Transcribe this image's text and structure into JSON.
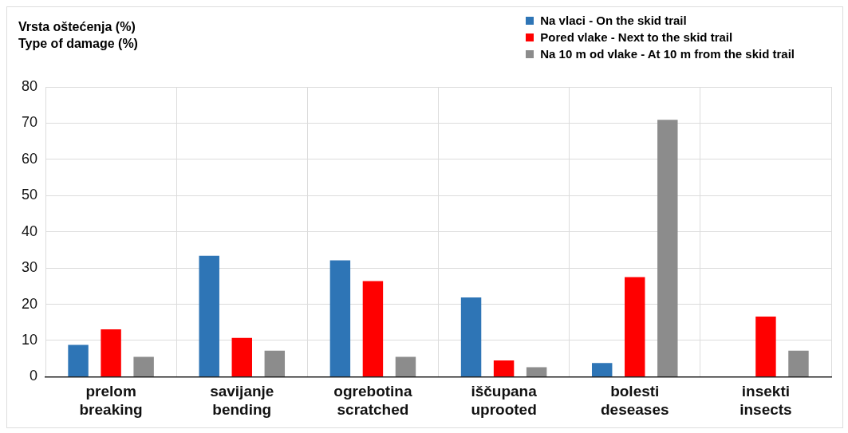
{
  "chart_data": {
    "type": "bar",
    "ylabel": "Vrsta oštećenja (%)\nType of damage (%)",
    "categories": [
      "prelom\nbreaking",
      "savijanje\nbending",
      "ogrebotina\nscratched",
      "iščupana\nuprooted",
      "bolesti\ndeseases",
      "insekti\ninsects"
    ],
    "series": [
      {
        "name": "Na vlaci - On the skid trail",
        "color": "#2e75b6",
        "values": [
          8.8,
          33.4,
          32.1,
          21.9,
          3.8,
          null
        ]
      },
      {
        "name": "Pored vlake - Next to the skid trail",
        "color": "#ff0000",
        "values": [
          13.1,
          10.7,
          26.4,
          4.5,
          27.5,
          16.6
        ]
      },
      {
        "name": "Na 10 m od vlake - At 10 m from the skid trail",
        "color": "#8c8c8c",
        "values": [
          5.5,
          7.2,
          5.5,
          2.6,
          70.9,
          7.2
        ]
      }
    ],
    "ylim": [
      0,
      80
    ],
    "yticks": [
      0,
      10,
      20,
      30,
      40,
      50,
      60,
      70,
      80
    ],
    "grid": true,
    "legend": "top right"
  }
}
